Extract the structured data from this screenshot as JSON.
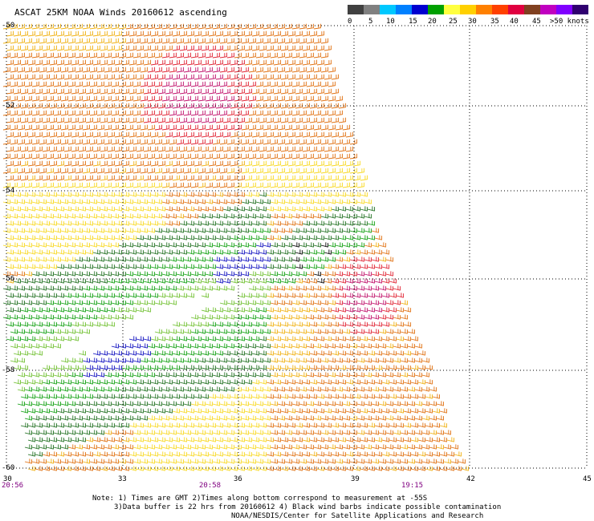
{
  "title": "ASCAT 25KM NOAA Winds 20160612 ascending",
  "colorbar": {
    "colors": [
      "#404040",
      "#808080",
      "#00c8ff",
      "#0080ff",
      "#0000d0",
      "#00a000",
      "#ffff40",
      "#ffd000",
      "#ff8000",
      "#ff4000",
      "#e00040",
      "#804020",
      "#c000c0",
      "#8000ff",
      "#300070"
    ],
    "labels": [
      "0",
      "5",
      "10",
      "15",
      "20",
      "25",
      "30",
      "35",
      "40",
      "45",
      ">50 knots"
    ]
  },
  "lat_labels": [
    "-50",
    "-52",
    "-54",
    "-56",
    "-58",
    "-60"
  ],
  "lon_labels": [
    "30",
    "33",
    "36",
    "39",
    "42",
    "45"
  ],
  "time_labels": [
    "20:56",
    "20:58",
    "19:15"
  ],
  "notes": [
    "Note: 1) Times are GMT 2)Times along bottom correspond to measurement at -55S",
    "3)Data buffer is 22 hrs from 20160612 4) Black wind barbs indicate possible contamination",
    "NOAA/NESDIS/Center for Satellite Applications and Research"
  ],
  "barb_colors": {
    "orange": "#e07010",
    "dark_orange": "#d05010",
    "yellow_orange": "#f0b010",
    "yellow": "#f8d820",
    "red": "#e02030",
    "magenta": "#c0106a",
    "green": "#10a010",
    "dark_green": "#207020",
    "light_green": "#70c030",
    "blue": "#1010c0",
    "black": "#000000"
  }
}
